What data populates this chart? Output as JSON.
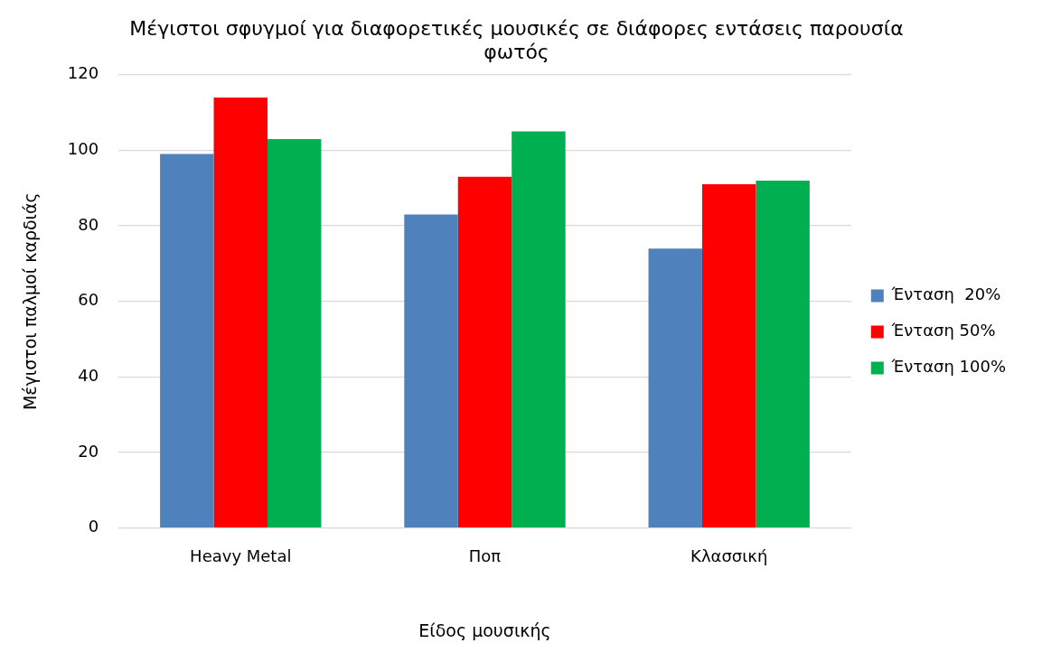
{
  "chart_data": {
    "type": "bar",
    "title": "Μέγιστοι σφυγμοί για διαφορετικές μουσικές σε διάφορες εντάσεις παρουσία φωτός",
    "xlabel": "Είδος μουσικής",
    "ylabel": "Μέγιστοι παλμοί καρδιάς",
    "categories": [
      "Heavy Metal",
      "Ποπ",
      "Κλασσική"
    ],
    "series": [
      {
        "name": "Ένταση  20%",
        "color": "#4f81bd",
        "values": [
          99,
          83,
          74
        ]
      },
      {
        "name": "Ένταση 50%",
        "color": "#ff0000",
        "values": [
          114,
          93,
          91
        ]
      },
      {
        "name": "Ένταση 100%",
        "color": "#00b050",
        "values": [
          103,
          105,
          92
        ]
      }
    ],
    "ylim": [
      0,
      120
    ],
    "yticks": [
      0,
      20,
      40,
      60,
      80,
      100,
      120
    ],
    "grid": "y",
    "legend": "right"
  }
}
